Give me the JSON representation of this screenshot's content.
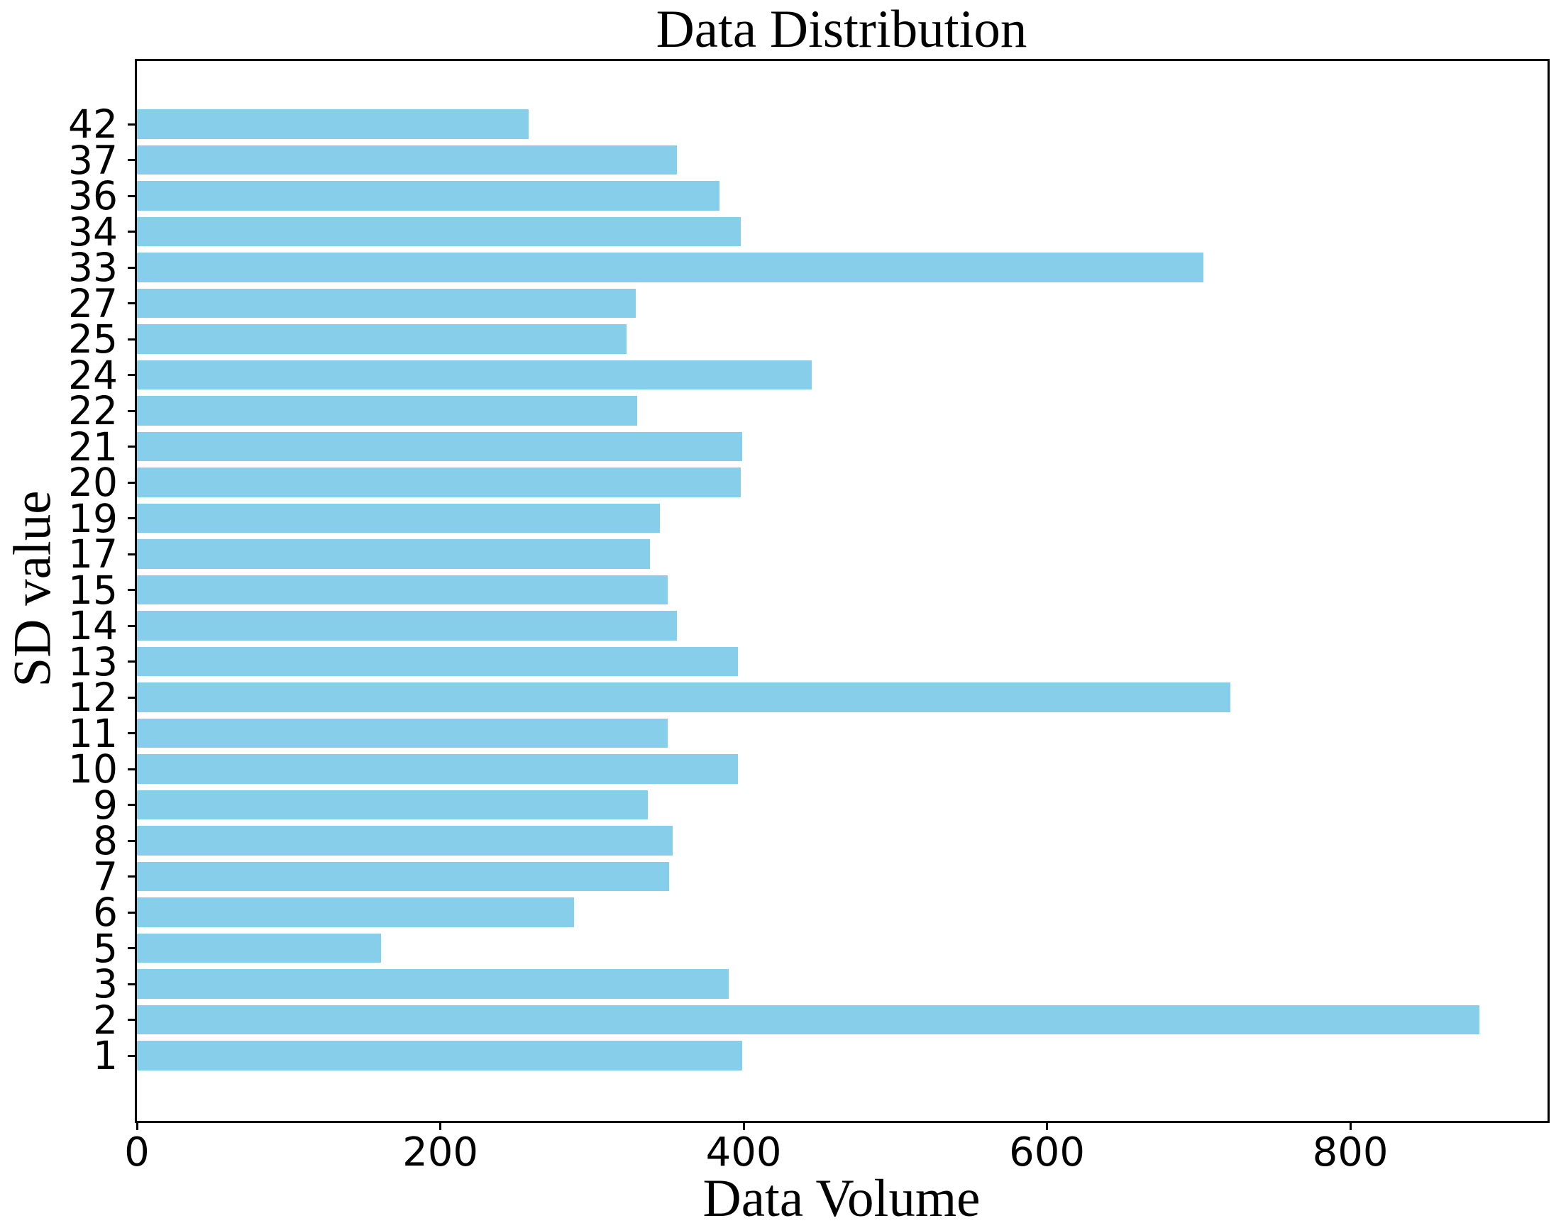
{
  "chart_data": {
    "type": "bar",
    "orientation": "horizontal",
    "title": "Data Distribution",
    "xlabel": "Data Volume",
    "ylabel": "SD value",
    "categories": [
      "42",
      "37",
      "36",
      "34",
      "33",
      "27",
      "25",
      "24",
      "22",
      "21",
      "20",
      "19",
      "17",
      "15",
      "14",
      "13",
      "12",
      "11",
      "10",
      "9",
      "8",
      "7",
      "6",
      "5",
      "3",
      "2",
      "1"
    ],
    "values": [
      258,
      356,
      384,
      398,
      703,
      329,
      323,
      445,
      330,
      399,
      398,
      345,
      338,
      350,
      356,
      396,
      721,
      350,
      396,
      337,
      353,
      351,
      288,
      161,
      390,
      885,
      399
    ],
    "xticks": [
      0,
      200,
      400,
      600,
      800
    ],
    "xlim": [
      0,
      930
    ],
    "bar_color": "#87CEEB",
    "axis_color": "#000000",
    "background_color": "#ffffff",
    "grid": false,
    "legend": null
  }
}
